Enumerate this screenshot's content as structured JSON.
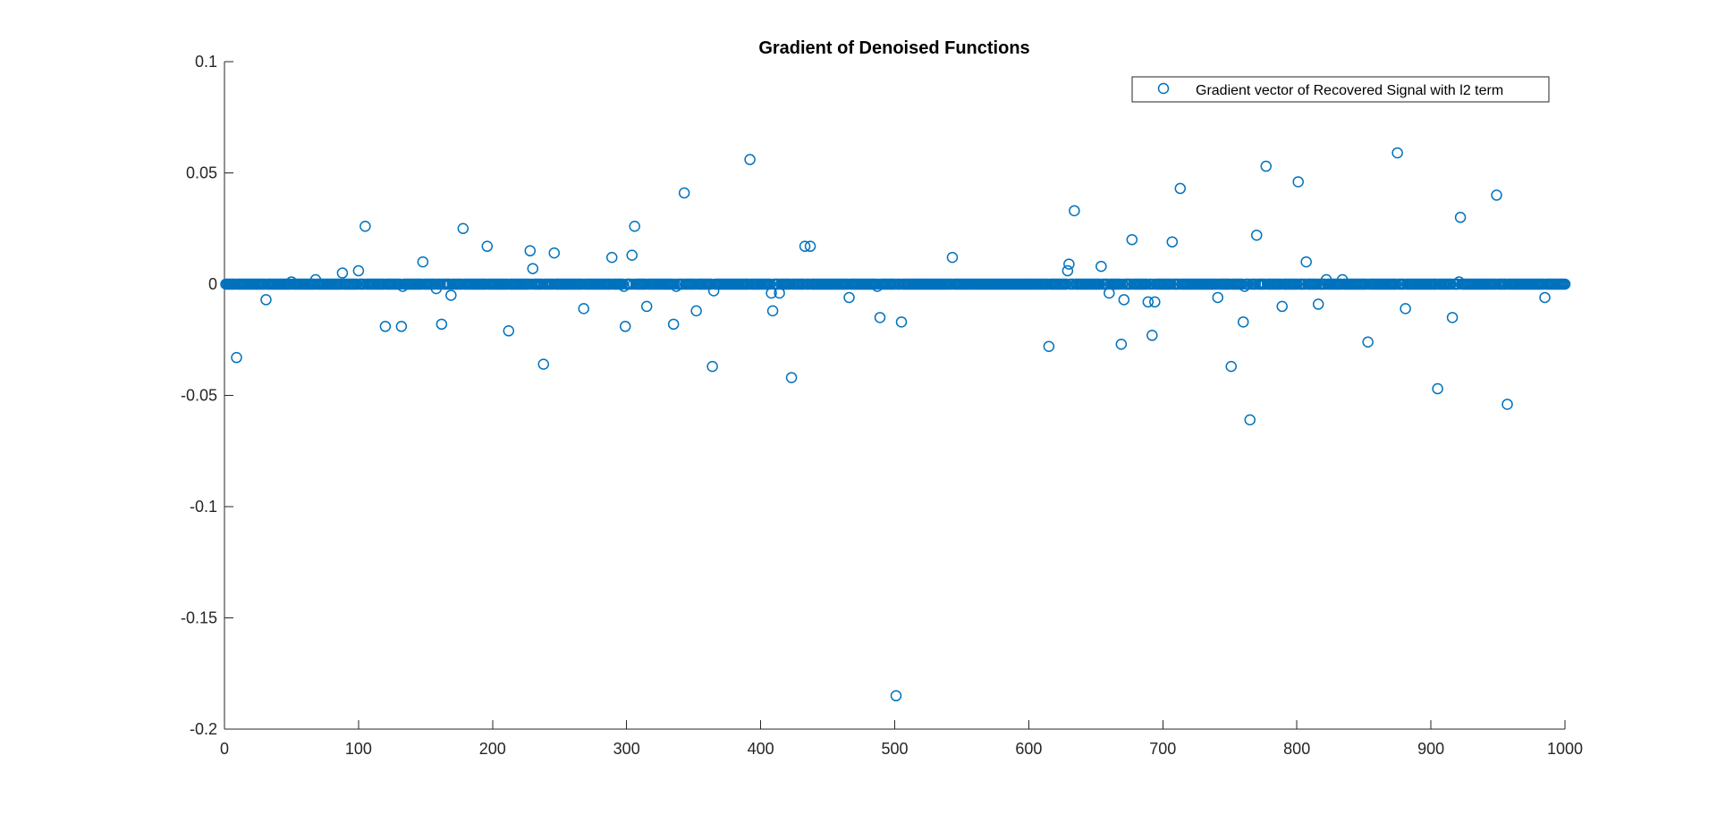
{
  "chart_data": {
    "type": "scatter",
    "title": "Gradient of Denoised Functions",
    "xlabel": "",
    "ylabel": "",
    "xlim": [
      0,
      1000
    ],
    "ylim": [
      -0.2,
      0.1
    ],
    "xticks": [
      0,
      100,
      200,
      300,
      400,
      500,
      600,
      700,
      800,
      900,
      1000
    ],
    "yticks": [
      -0.2,
      -0.15,
      -0.1,
      -0.05,
      0,
      0.05,
      0.1
    ],
    "ytick_labels": [
      "-0.2",
      "-0.15",
      "-0.1",
      "-0.05",
      "0",
      "0.05",
      "0.1"
    ],
    "grid": false,
    "legend": {
      "position": "top-right"
    },
    "marker_color": "#0072BD",
    "series": [
      {
        "name": "Gradient vector of Recovered Signal with l2 term",
        "marker": "circle",
        "baseline": {
          "x_start": 1,
          "x_end": 1000,
          "y": 0
        },
        "nonzero_points": [
          [
            9,
            -0.033
          ],
          [
            31,
            -0.007
          ],
          [
            50,
            0.001
          ],
          [
            68,
            0.002
          ],
          [
            88,
            0.005
          ],
          [
            100,
            0.006
          ],
          [
            105,
            0.026
          ],
          [
            120,
            -0.019
          ],
          [
            132,
            -0.019
          ],
          [
            133,
            -0.001
          ],
          [
            148,
            0.01
          ],
          [
            158,
            -0.002
          ],
          [
            162,
            -0.018
          ],
          [
            169,
            -0.005
          ],
          [
            178,
            0.025
          ],
          [
            196,
            0.017
          ],
          [
            212,
            -0.021
          ],
          [
            228,
            0.015
          ],
          [
            230,
            0.007
          ],
          [
            238,
            -0.036
          ],
          [
            246,
            0.014
          ],
          [
            268,
            -0.011
          ],
          [
            289,
            0.012
          ],
          [
            298,
            -0.001
          ],
          [
            299,
            -0.019
          ],
          [
            304,
            0.013
          ],
          [
            306,
            0.026
          ],
          [
            315,
            -0.01
          ],
          [
            335,
            -0.018
          ],
          [
            337,
            -0.001
          ],
          [
            343,
            0.041
          ],
          [
            352,
            -0.012
          ],
          [
            364,
            -0.037
          ],
          [
            365,
            -0.003
          ],
          [
            392,
            0.056
          ],
          [
            408,
            -0.004
          ],
          [
            409,
            -0.012
          ],
          [
            414,
            -0.004
          ],
          [
            423,
            -0.042
          ],
          [
            433,
            0.017
          ],
          [
            437,
            0.017
          ],
          [
            466,
            -0.006
          ],
          [
            487,
            -0.001
          ],
          [
            489,
            -0.015
          ],
          [
            505,
            -0.017
          ],
          [
            501,
            -0.185
          ],
          [
            543,
            0.012
          ],
          [
            615,
            -0.028
          ],
          [
            629,
            0.006
          ],
          [
            630,
            0.009
          ],
          [
            634,
            0.033
          ],
          [
            654,
            0.008
          ],
          [
            660,
            -0.004
          ],
          [
            669,
            -0.027
          ],
          [
            671,
            -0.007
          ],
          [
            677,
            0.02
          ],
          [
            689,
            -0.008
          ],
          [
            692,
            -0.023
          ],
          [
            694,
            -0.008
          ],
          [
            707,
            0.019
          ],
          [
            713,
            0.043
          ],
          [
            741,
            -0.006
          ],
          [
            751,
            -0.037
          ],
          [
            760,
            -0.017
          ],
          [
            761,
            -0.001
          ],
          [
            765,
            -0.061
          ],
          [
            770,
            0.022
          ],
          [
            777,
            0.053
          ],
          [
            789,
            -0.01
          ],
          [
            801,
            0.046
          ],
          [
            807,
            0.01
          ],
          [
            816,
            -0.009
          ],
          [
            822,
            0.002
          ],
          [
            834,
            0.002
          ],
          [
            853,
            -0.026
          ],
          [
            875,
            0.059
          ],
          [
            881,
            -0.011
          ],
          [
            905,
            -0.047
          ],
          [
            916,
            -0.015
          ],
          [
            921,
            0.001
          ],
          [
            922,
            0.03
          ],
          [
            949,
            0.04
          ],
          [
            957,
            -0.054
          ],
          [
            985,
            -0.006
          ]
        ]
      }
    ]
  }
}
